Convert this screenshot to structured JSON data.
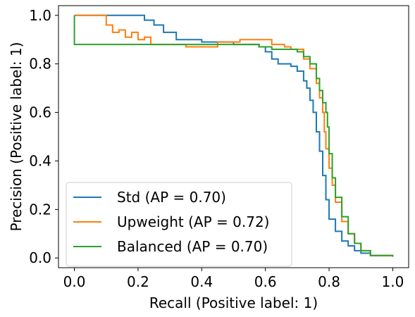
{
  "chart_data": {
    "type": "line",
    "title": "",
    "xlabel": "Recall (Positive label: 1)",
    "ylabel": "Precision (Positive label: 1)",
    "xlim": [
      -0.05,
      1.05
    ],
    "ylim": [
      -0.04,
      1.04
    ],
    "xticks": [
      0.0,
      0.2,
      0.4,
      0.6,
      0.8,
      1.0
    ],
    "xtick_labels": [
      "0.0",
      "0.2",
      "0.4",
      "0.6",
      "0.8",
      "1.0"
    ],
    "yticks": [
      0.0,
      0.2,
      0.4,
      0.6,
      0.8,
      1.0
    ],
    "ytick_labels": [
      "0.0",
      "0.2",
      "0.4",
      "0.6",
      "0.8",
      "1.0"
    ],
    "grid": false,
    "legend_position": "lower-left",
    "step": true,
    "series": [
      {
        "name": "Std (AP = 0.70)",
        "color": "#1f77b4",
        "points": [
          [
            0.0,
            1.0
          ],
          [
            0.2,
            1.0
          ],
          [
            0.22,
            0.98
          ],
          [
            0.25,
            0.96
          ],
          [
            0.28,
            0.93
          ],
          [
            0.32,
            0.9
          ],
          [
            0.4,
            0.89
          ],
          [
            0.5,
            0.88
          ],
          [
            0.58,
            0.87
          ],
          [
            0.6,
            0.85
          ],
          [
            0.62,
            0.82
          ],
          [
            0.64,
            0.8
          ],
          [
            0.66,
            0.8
          ],
          [
            0.68,
            0.79
          ],
          [
            0.7,
            0.77
          ],
          [
            0.72,
            0.73
          ],
          [
            0.73,
            0.7
          ],
          [
            0.74,
            0.65
          ],
          [
            0.75,
            0.6
          ],
          [
            0.76,
            0.52
          ],
          [
            0.77,
            0.44
          ],
          [
            0.78,
            0.34
          ],
          [
            0.79,
            0.24
          ],
          [
            0.8,
            0.16
          ],
          [
            0.82,
            0.11
          ],
          [
            0.84,
            0.07
          ],
          [
            0.86,
            0.05
          ],
          [
            0.88,
            0.03
          ],
          [
            0.9,
            0.02
          ],
          [
            0.93,
            0.01
          ],
          [
            1.0,
            0.005
          ]
        ]
      },
      {
        "name": "Upweight (AP = 0.72)",
        "color": "#ff7f0e",
        "points": [
          [
            0.0,
            1.0
          ],
          [
            0.09,
            1.0
          ],
          [
            0.1,
            0.96
          ],
          [
            0.12,
            0.93
          ],
          [
            0.14,
            0.94
          ],
          [
            0.16,
            0.91
          ],
          [
            0.18,
            0.93
          ],
          [
            0.2,
            0.9
          ],
          [
            0.22,
            0.91
          ],
          [
            0.24,
            0.88
          ],
          [
            0.28,
            0.88
          ],
          [
            0.35,
            0.87
          ],
          [
            0.45,
            0.89
          ],
          [
            0.52,
            0.9
          ],
          [
            0.55,
            0.9
          ],
          [
            0.58,
            0.9
          ],
          [
            0.62,
            0.88
          ],
          [
            0.66,
            0.87
          ],
          [
            0.68,
            0.86
          ],
          [
            0.7,
            0.86
          ],
          [
            0.72,
            0.82
          ],
          [
            0.74,
            0.78
          ],
          [
            0.76,
            0.72
          ],
          [
            0.77,
            0.66
          ],
          [
            0.78,
            0.6
          ],
          [
            0.785,
            0.52
          ],
          [
            0.79,
            0.45
          ],
          [
            0.8,
            0.37
          ],
          [
            0.81,
            0.3
          ],
          [
            0.82,
            0.23
          ],
          [
            0.84,
            0.15
          ],
          [
            0.86,
            0.1
          ],
          [
            0.88,
            0.06
          ],
          [
            0.9,
            0.03
          ],
          [
            0.93,
            0.01
          ],
          [
            1.0,
            0.005
          ]
        ]
      },
      {
        "name": "Balanced (AP = 0.70)",
        "color": "#2ca02c",
        "points": [
          [
            0.0,
            1.0
          ],
          [
            0.0,
            0.88
          ],
          [
            0.28,
            0.88
          ],
          [
            0.4,
            0.88
          ],
          [
            0.5,
            0.88
          ],
          [
            0.58,
            0.87
          ],
          [
            0.62,
            0.86
          ],
          [
            0.66,
            0.86
          ],
          [
            0.68,
            0.86
          ],
          [
            0.7,
            0.85
          ],
          [
            0.72,
            0.83
          ],
          [
            0.74,
            0.8
          ],
          [
            0.76,
            0.74
          ],
          [
            0.77,
            0.69
          ],
          [
            0.78,
            0.64
          ],
          [
            0.79,
            0.6
          ],
          [
            0.795,
            0.54
          ],
          [
            0.8,
            0.43
          ],
          [
            0.81,
            0.33
          ],
          [
            0.82,
            0.25
          ],
          [
            0.84,
            0.17
          ],
          [
            0.86,
            0.1
          ],
          [
            0.88,
            0.06
          ],
          [
            0.9,
            0.03
          ],
          [
            0.93,
            0.01
          ],
          [
            1.0,
            0.005
          ]
        ]
      }
    ]
  }
}
